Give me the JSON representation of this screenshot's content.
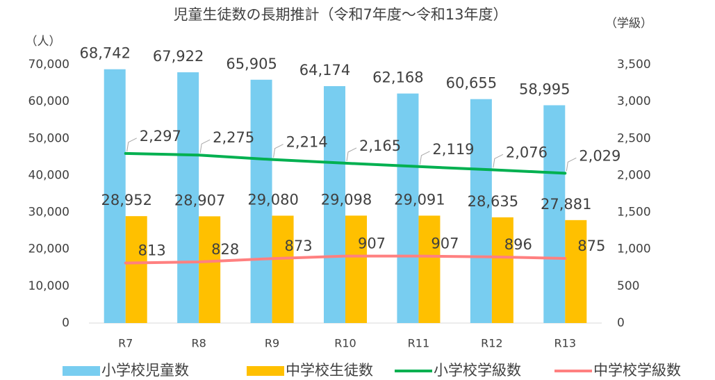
{
  "chart_data": {
    "type": "bar_line",
    "title": "児童生徒数の長期推計（令和7年度～令和13年度）",
    "y_label": "（人）",
    "y2_label": "（学級）",
    "categories": [
      "R7",
      "R8",
      "R9",
      "R10",
      "R11",
      "R12",
      "R13"
    ],
    "ylim": [
      0,
      70000
    ],
    "yticks": [
      0,
      {
        "value": 10000,
        "label": "10,000"
      },
      {
        "value": 20000,
        "label": "20,000"
      },
      {
        "value": 30000,
        "label": "30,000"
      },
      {
        "value": 40000,
        "label": "40,000"
      },
      {
        "value": 50000,
        "label": "50,000"
      },
      {
        "value": 60000,
        "label": "60,000"
      },
      {
        "value": 70000,
        "label": "70,000"
      }
    ],
    "y2lim": [
      0,
      3500
    ],
    "y2ticks": [
      0,
      500,
      {
        "value": 1000,
        "label": "1,000"
      },
      {
        "value": 1500,
        "label": "1,500"
      },
      {
        "value": 2000,
        "label": "2,000"
      },
      {
        "value": 2500,
        "label": "2,500"
      },
      {
        "value": 3000,
        "label": "3,000"
      },
      {
        "value": 3500,
        "label": "3,500"
      }
    ],
    "series": [
      {
        "name": "小学校児童数",
        "kind": "bar",
        "color": "#78CDF0",
        "values": [
          68742,
          67922,
          65905,
          64174,
          62168,
          60655,
          58995
        ],
        "value_labels": [
          "68,742",
          "67,922",
          "65,905",
          "64,174",
          "62,168",
          "60,655",
          "58,995"
        ]
      },
      {
        "name": "中学校生徒数",
        "kind": "bar",
        "color": "#FFC000",
        "values": [
          28952,
          28907,
          29080,
          29098,
          29091,
          28635,
          27881
        ],
        "value_labels": [
          "28,952",
          "28,907",
          "29,080",
          "29,098",
          "29,091",
          "28,635",
          "27,881"
        ]
      },
      {
        "name": "小学校学級数",
        "kind": "line",
        "axis": "y2",
        "color": "#00B050",
        "values": [
          2297,
          2275,
          2214,
          2165,
          2119,
          2076,
          2029
        ],
        "value_labels": [
          "2,297",
          "2,275",
          "2,214",
          "2,165",
          "2,119",
          "2,076",
          "2,029"
        ]
      },
      {
        "name": "中学校学級数",
        "kind": "line",
        "axis": "y2",
        "color": "#FF8080",
        "values": [
          813,
          828,
          873,
          907,
          907,
          896,
          875
        ]
      }
    ]
  }
}
